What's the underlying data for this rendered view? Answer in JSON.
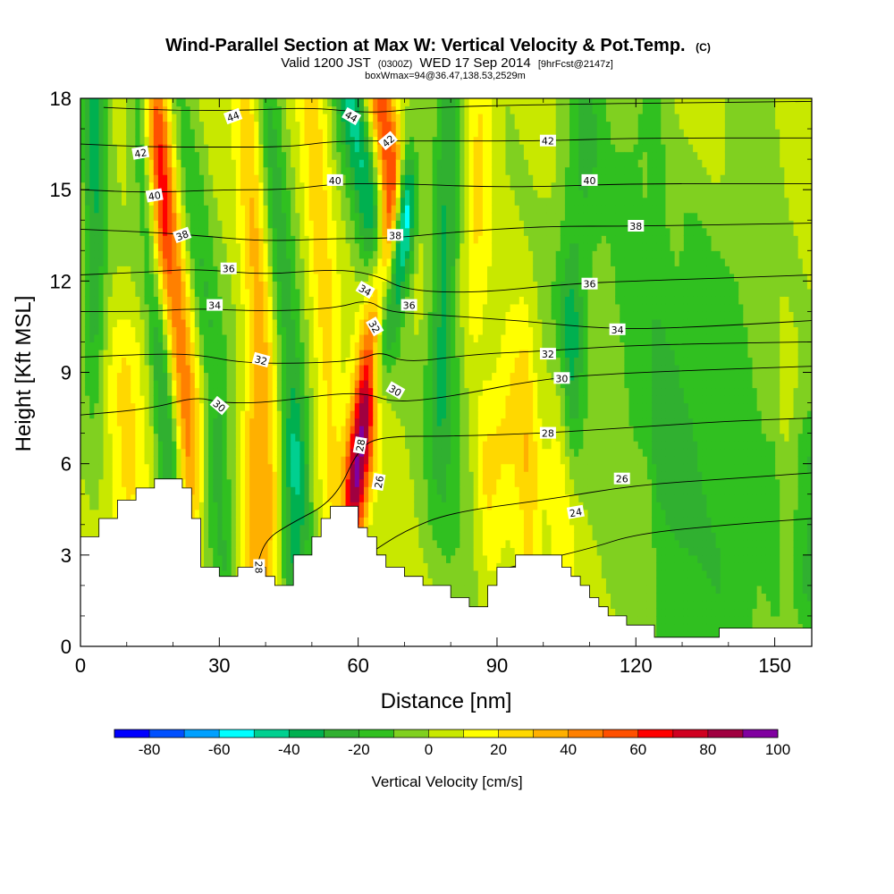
{
  "chart_data": {
    "type": "heatmap",
    "title": "Wind-Parallel Section at Max W: Vertical Velocity & Pot.Temp.",
    "title_mark": "(C)",
    "subtitle_parts": {
      "valid": "Valid 1200 JST",
      "utc": "(0300Z)",
      "date": "WED 17 Sep 2014",
      "fcst": "[9hrFcst@2147z]"
    },
    "info_line": "boxWmax=94@36.47,138.53,2529m",
    "xlabel": "Distance [nm]",
    "ylabel": "Height [Kft MSL]",
    "xlim": [
      0,
      158
    ],
    "ylim": [
      0,
      18
    ],
    "x_ticks": [
      "0",
      "30",
      "60",
      "90",
      "120",
      "150"
    ],
    "x_tick_values": [
      0,
      30,
      60,
      90,
      120,
      150
    ],
    "y_ticks": [
      "0",
      "3",
      "6",
      "9",
      "12",
      "15",
      "18"
    ],
    "y_tick_values": [
      0,
      3,
      6,
      9,
      12,
      15,
      18
    ],
    "colorbar": {
      "title": "Vertical Velocity [cm/s]",
      "labels": [
        "-80",
        "-60",
        "-40",
        "-20",
        "0",
        "20",
        "40",
        "60",
        "80",
        "100"
      ],
      "min": -90,
      "max": 100,
      "step": 10,
      "colors": [
        "#0000ff",
        "#0050ff",
        "#00a0ff",
        "#00ffff",
        "#00d090",
        "#00b050",
        "#30b030",
        "#30c020",
        "#80d020",
        "#c8e800",
        "#ffff00",
        "#ffd800",
        "#ffb000",
        "#ff8000",
        "#ff5000",
        "#ff0000",
        "#d00020",
        "#a00040",
        "#8000a0"
      ]
    },
    "grid": false,
    "terrain_kft": [
      [
        0,
        3.6
      ],
      [
        2,
        3.6
      ],
      [
        4,
        4.2
      ],
      [
        6,
        4.2
      ],
      [
        8,
        4.8
      ],
      [
        10,
        4.8
      ],
      [
        12,
        5.2
      ],
      [
        14,
        5.2
      ],
      [
        16,
        5.5
      ],
      [
        18,
        5.5
      ],
      [
        20,
        5.5
      ],
      [
        22,
        5.2
      ],
      [
        24,
        4.2
      ],
      [
        26,
        2.6
      ],
      [
        28,
        2.6
      ],
      [
        30,
        2.3
      ],
      [
        32,
        2.3
      ],
      [
        34,
        2.6
      ],
      [
        36,
        2.6
      ],
      [
        38,
        2.6
      ],
      [
        40,
        2.3
      ],
      [
        42,
        2.0
      ],
      [
        44,
        2.0
      ],
      [
        46,
        3.0
      ],
      [
        48,
        3.0
      ],
      [
        50,
        3.6
      ],
      [
        52,
        4.2
      ],
      [
        54,
        4.6
      ],
      [
        56,
        4.6
      ],
      [
        58,
        4.6
      ],
      [
        60,
        3.9
      ],
      [
        62,
        3.6
      ],
      [
        64,
        3.0
      ],
      [
        66,
        2.6
      ],
      [
        68,
        2.6
      ],
      [
        70,
        2.3
      ],
      [
        72,
        2.3
      ],
      [
        74,
        2.0
      ],
      [
        76,
        2.0
      ],
      [
        78,
        2.0
      ],
      [
        80,
        1.6
      ],
      [
        82,
        1.6
      ],
      [
        84,
        1.3
      ],
      [
        86,
        1.3
      ],
      [
        88,
        2.0
      ],
      [
        90,
        2.6
      ],
      [
        92,
        2.6
      ],
      [
        94,
        3.0
      ],
      [
        96,
        3.0
      ],
      [
        98,
        3.0
      ],
      [
        100,
        3.0
      ],
      [
        102,
        3.0
      ],
      [
        104,
        2.6
      ],
      [
        106,
        2.3
      ],
      [
        108,
        2.0
      ],
      [
        110,
        1.6
      ],
      [
        112,
        1.3
      ],
      [
        114,
        1.0
      ],
      [
        116,
        1.0
      ],
      [
        118,
        0.7
      ],
      [
        120,
        0.7
      ],
      [
        122,
        0.7
      ],
      [
        124,
        0.3
      ],
      [
        126,
        0.3
      ],
      [
        128,
        0.3
      ],
      [
        130,
        0.3
      ],
      [
        132,
        0.3
      ],
      [
        134,
        0.3
      ],
      [
        136,
        0.3
      ],
      [
        138,
        0.6
      ],
      [
        140,
        0.6
      ],
      [
        142,
        0.6
      ],
      [
        144,
        0.6
      ],
      [
        146,
        0.6
      ],
      [
        148,
        0.6
      ],
      [
        150,
        0.6
      ],
      [
        152,
        0.6
      ],
      [
        154,
        0.6
      ],
      [
        156,
        0.6
      ],
      [
        158,
        0.6
      ]
    ],
    "w_features": [
      {
        "x0": 59.5,
        "z0": 5.5,
        "x1": 66,
        "z1": 12,
        "w": 92,
        "sx": 1.6,
        "sz": 2.0
      },
      {
        "x0": 64.5,
        "z0": 9.5,
        "x1": 70,
        "z1": 14,
        "w": -70,
        "sx": 1.3,
        "sz": 1.8
      },
      {
        "x0": 65,
        "z0": 13,
        "x1": 58,
        "z1": 18.5,
        "w": -45,
        "sx": 1.8,
        "sz": 2.5
      },
      {
        "x0": 67,
        "z0": 15.5,
        "x1": 64,
        "z1": 18.5,
        "w": 55,
        "sx": 1.8,
        "sz": 1.8
      },
      {
        "x0": 23,
        "z0": 7,
        "x1": 18,
        "z1": 16,
        "w": 45,
        "sx": 2.2,
        "sz": 3.0
      },
      {
        "x0": 19.5,
        "z0": 6,
        "x1": 14,
        "z1": 16,
        "w": -38,
        "sx": 1.6,
        "sz": 3.5
      },
      {
        "x0": 28,
        "z0": 10,
        "x1": 20,
        "z1": 18.5,
        "w": -22,
        "sx": 2.0,
        "sz": 3.5
      },
      {
        "x0": 17,
        "z0": 14,
        "x1": 15,
        "z1": 18.5,
        "w": 35,
        "sx": 1.8,
        "sz": 2.0
      },
      {
        "x0": 3,
        "z0": 12,
        "x1": 3,
        "z1": 18.5,
        "w": -32,
        "sx": 1.8,
        "sz": 3.0
      },
      {
        "x0": 38,
        "z0": 3,
        "x1": 37,
        "z1": 6,
        "w": 28,
        "sx": 1.8,
        "sz": 1.8
      },
      {
        "x0": 45,
        "z0": 3,
        "x1": 46,
        "z1": 6,
        "w": -25,
        "sx": 2.0,
        "sz": 1.8
      },
      {
        "x0": 31,
        "z0": 3,
        "x1": 29,
        "z1": 5.5,
        "w": -22,
        "sx": 2.0,
        "sz": 1.5
      },
      {
        "x0": 41,
        "z0": 5,
        "x1": 36,
        "z1": 18.5,
        "w": 30,
        "sx": 2.0,
        "sz": 3.5
      },
      {
        "x0": 47,
        "z0": 6,
        "x1": 40,
        "z1": 18.5,
        "w": -25,
        "sx": 2.0,
        "sz": 4.0
      },
      {
        "x0": 54,
        "z0": 7,
        "x1": 50,
        "z1": 18.5,
        "w": 22,
        "sx": 2.0,
        "sz": 3.5
      },
      {
        "x0": 78,
        "z0": 10,
        "x1": 80,
        "z1": 18.5,
        "w": -30,
        "sx": 2.0,
        "sz": 3.0
      },
      {
        "x0": 85,
        "z0": 12,
        "x1": 87,
        "z1": 18.5,
        "w": 18,
        "sx": 2.0,
        "sz": 3.0
      },
      {
        "x0": 106,
        "z0": 11,
        "x1": 109,
        "z1": 17,
        "w": -22,
        "sx": 3.0,
        "sz": 3.0
      },
      {
        "x0": 80,
        "z0": 5,
        "x1": 80,
        "z1": 8,
        "w": -15,
        "sx": 4.0,
        "sz": 2.0
      },
      {
        "x0": 88,
        "z0": 6,
        "x1": 96,
        "z1": 8,
        "w": 22,
        "sx": 2.2,
        "sz": 1.5
      },
      {
        "x0": 97,
        "z0": 3,
        "x1": 97,
        "z1": 5,
        "w": 20,
        "sx": 2.0,
        "sz": 1.5
      },
      {
        "x0": 104,
        "z0": 3.5,
        "x1": 104,
        "z1": 7,
        "w": 15,
        "sx": 2.0,
        "sz": 2.0
      },
      {
        "x0": 106,
        "z0": 8,
        "x1": 106,
        "z1": 10,
        "w": -18,
        "sx": 1.5,
        "sz": 1.8
      },
      {
        "x0": 120,
        "z0": 8,
        "x1": 120,
        "z1": 16,
        "w": -15,
        "sx": 5.0,
        "sz": 3.5
      },
      {
        "x0": 130,
        "z0": 7,
        "x1": 132,
        "z1": 12,
        "w": -18,
        "sx": 4.0,
        "sz": 3.0
      },
      {
        "x0": 140,
        "z0": 6,
        "x1": 142,
        "z1": 16,
        "w": -14,
        "sx": 4.0,
        "sz": 4.0
      },
      {
        "x0": 158,
        "z0": 2.5,
        "x1": 158,
        "z1": 6,
        "w": -25,
        "sx": 3.0,
        "sz": 1.5
      },
      {
        "x0": 125,
        "z0": 1,
        "x1": 150,
        "z1": 2.5,
        "w": -14,
        "sx": 8.0,
        "sz": 1.0
      },
      {
        "x0": 10,
        "z0": 5,
        "x1": 10,
        "z1": 9,
        "w": 18,
        "sx": 3.0,
        "sz": 1.5
      },
      {
        "x0": 130,
        "z0": 14,
        "x1": 145,
        "z1": 17,
        "w": 10,
        "sx": 8.0,
        "sz": 2.0
      }
    ],
    "theta_isolines": [
      {
        "value": 24,
        "pts": [
          [
            90,
            2.5
          ],
          [
            110,
            3.2
          ],
          [
            120,
            3.7
          ],
          [
            140,
            4.0
          ],
          [
            158,
            4.2
          ]
        ]
      },
      {
        "value": 26,
        "pts": [
          [
            62,
            3.0
          ],
          [
            70,
            3.8
          ],
          [
            80,
            4.4
          ],
          [
            100,
            4.8
          ],
          [
            120,
            5.3
          ],
          [
            140,
            5.5
          ],
          [
            158,
            5.7
          ]
        ]
      },
      {
        "value": 28,
        "pts": [
          [
            38,
            2.6
          ],
          [
            40,
            3.5
          ],
          [
            45,
            4.0
          ],
          [
            55,
            4.8
          ],
          [
            60,
            6.5
          ],
          [
            65,
            6.9
          ],
          [
            80,
            6.9
          ],
          [
            100,
            7.0
          ],
          [
            120,
            7.2
          ],
          [
            140,
            7.4
          ],
          [
            158,
            7.5
          ]
        ]
      },
      {
        "value": 30,
        "pts": [
          [
            0,
            7.6
          ],
          [
            15,
            7.8
          ],
          [
            25,
            8.2
          ],
          [
            30,
            8.0
          ],
          [
            40,
            8.0
          ],
          [
            55,
            8.3
          ],
          [
            62,
            8.3
          ],
          [
            68,
            8.0
          ],
          [
            80,
            8.2
          ],
          [
            100,
            8.8
          ],
          [
            120,
            9.0
          ],
          [
            158,
            9.2
          ]
        ]
      },
      {
        "value": 32,
        "pts": [
          [
            0,
            9.5
          ],
          [
            15,
            9.6
          ],
          [
            25,
            9.6
          ],
          [
            35,
            9.3
          ],
          [
            50,
            9.3
          ],
          [
            60,
            9.4
          ],
          [
            65,
            9.7
          ],
          [
            70,
            9.3
          ],
          [
            85,
            9.6
          ],
          [
            100,
            9.7
          ],
          [
            120,
            9.9
          ],
          [
            158,
            10.0
          ]
        ]
      },
      {
        "value": 34,
        "pts": [
          [
            0,
            11.0
          ],
          [
            15,
            11.0
          ],
          [
            25,
            11.1
          ],
          [
            40,
            11.0
          ],
          [
            55,
            11.1
          ],
          [
            62,
            11.4
          ],
          [
            66,
            11.0
          ],
          [
            75,
            10.9
          ],
          [
            95,
            10.7
          ],
          [
            115,
            10.4
          ],
          [
            135,
            10.5
          ],
          [
            158,
            10.7
          ]
        ]
      },
      {
        "value": 36,
        "pts": [
          [
            0,
            12.2
          ],
          [
            15,
            12.3
          ],
          [
            25,
            12.4
          ],
          [
            40,
            12.2
          ],
          [
            55,
            12.4
          ],
          [
            64,
            12.2
          ],
          [
            70,
            11.7
          ],
          [
            85,
            11.6
          ],
          [
            105,
            11.9
          ],
          [
            120,
            12.0
          ],
          [
            140,
            12.1
          ],
          [
            158,
            12.2
          ]
        ]
      },
      {
        "value": 38,
        "pts": [
          [
            0,
            13.7
          ],
          [
            15,
            13.6
          ],
          [
            25,
            13.5
          ],
          [
            40,
            13.3
          ],
          [
            55,
            13.4
          ],
          [
            67,
            13.4
          ],
          [
            80,
            13.6
          ],
          [
            100,
            13.8
          ],
          [
            120,
            13.8
          ],
          [
            158,
            13.9
          ]
        ]
      },
      {
        "value": 40,
        "pts": [
          [
            0,
            15.0
          ],
          [
            15,
            14.9
          ],
          [
            30,
            15.0
          ],
          [
            45,
            15.0
          ],
          [
            55,
            15.2
          ],
          [
            70,
            15.2
          ],
          [
            85,
            15.1
          ],
          [
            100,
            15.1
          ],
          [
            120,
            15.2
          ],
          [
            158,
            15.2
          ]
        ]
      },
      {
        "value": 42,
        "pts": [
          [
            0,
            16.5
          ],
          [
            15,
            16.4
          ],
          [
            30,
            16.4
          ],
          [
            45,
            16.4
          ],
          [
            55,
            16.6
          ],
          [
            67,
            16.6
          ],
          [
            80,
            16.6
          ],
          [
            100,
            16.6
          ],
          [
            120,
            16.7
          ],
          [
            158,
            16.7
          ]
        ]
      },
      {
        "value": 44,
        "pts": [
          [
            5,
            17.7
          ],
          [
            20,
            17.6
          ],
          [
            35,
            17.6
          ],
          [
            50,
            17.7
          ],
          [
            63,
            17.5
          ],
          [
            75,
            17.7
          ],
          [
            100,
            17.8
          ],
          [
            158,
            17.9
          ]
        ]
      }
    ],
    "theta_labels": [
      {
        "text": "42",
        "x": 13,
        "y": 16.2,
        "angle": -10
      },
      {
        "text": "44",
        "x": 33,
        "y": 17.4,
        "angle": -20
      },
      {
        "text": "40",
        "x": 16,
        "y": 14.8,
        "angle": -10
      },
      {
        "text": "38",
        "x": 22,
        "y": 13.5,
        "angle": -20
      },
      {
        "text": "36",
        "x": 32,
        "y": 12.4,
        "angle": 0
      },
      {
        "text": "34",
        "x": 29,
        "y": 11.2,
        "angle": 0
      },
      {
        "text": "32",
        "x": 39,
        "y": 9.4,
        "angle": 15
      },
      {
        "text": "30",
        "x": 30,
        "y": 7.9,
        "angle": 40
      },
      {
        "text": "28",
        "x": 38.5,
        "y": 2.6,
        "angle": 90
      },
      {
        "text": "44",
        "x": 58.5,
        "y": 17.4,
        "angle": 30
      },
      {
        "text": "42",
        "x": 66.5,
        "y": 16.6,
        "angle": -40
      },
      {
        "text": "40",
        "x": 55,
        "y": 15.3,
        "angle": 0
      },
      {
        "text": "38",
        "x": 68,
        "y": 13.5,
        "angle": 0
      },
      {
        "text": "34",
        "x": 61.5,
        "y": 11.7,
        "angle": 30
      },
      {
        "text": "32",
        "x": 63.5,
        "y": 10.5,
        "angle": 60
      },
      {
        "text": "36",
        "x": 71,
        "y": 11.2,
        "angle": 0
      },
      {
        "text": "30",
        "x": 68,
        "y": 8.4,
        "angle": 30
      },
      {
        "text": "28",
        "x": 60.5,
        "y": 6.6,
        "angle": -80
      },
      {
        "text": "26",
        "x": 64.5,
        "y": 5.4,
        "angle": -80
      },
      {
        "text": "42",
        "x": 101,
        "y": 16.6,
        "angle": 0
      },
      {
        "text": "40",
        "x": 110,
        "y": 15.3,
        "angle": 0
      },
      {
        "text": "38",
        "x": 120,
        "y": 13.8,
        "angle": 0
      },
      {
        "text": "36",
        "x": 110,
        "y": 11.9,
        "angle": 0
      },
      {
        "text": "34",
        "x": 116,
        "y": 10.4,
        "angle": 0
      },
      {
        "text": "32",
        "x": 101,
        "y": 9.6,
        "angle": 0
      },
      {
        "text": "30",
        "x": 104,
        "y": 8.8,
        "angle": 0
      },
      {
        "text": "28",
        "x": 101,
        "y": 7.0,
        "angle": 0
      },
      {
        "text": "26",
        "x": 117,
        "y": 5.5,
        "angle": 0
      },
      {
        "text": "24",
        "x": 107,
        "y": 4.4,
        "angle": -10
      }
    ]
  }
}
